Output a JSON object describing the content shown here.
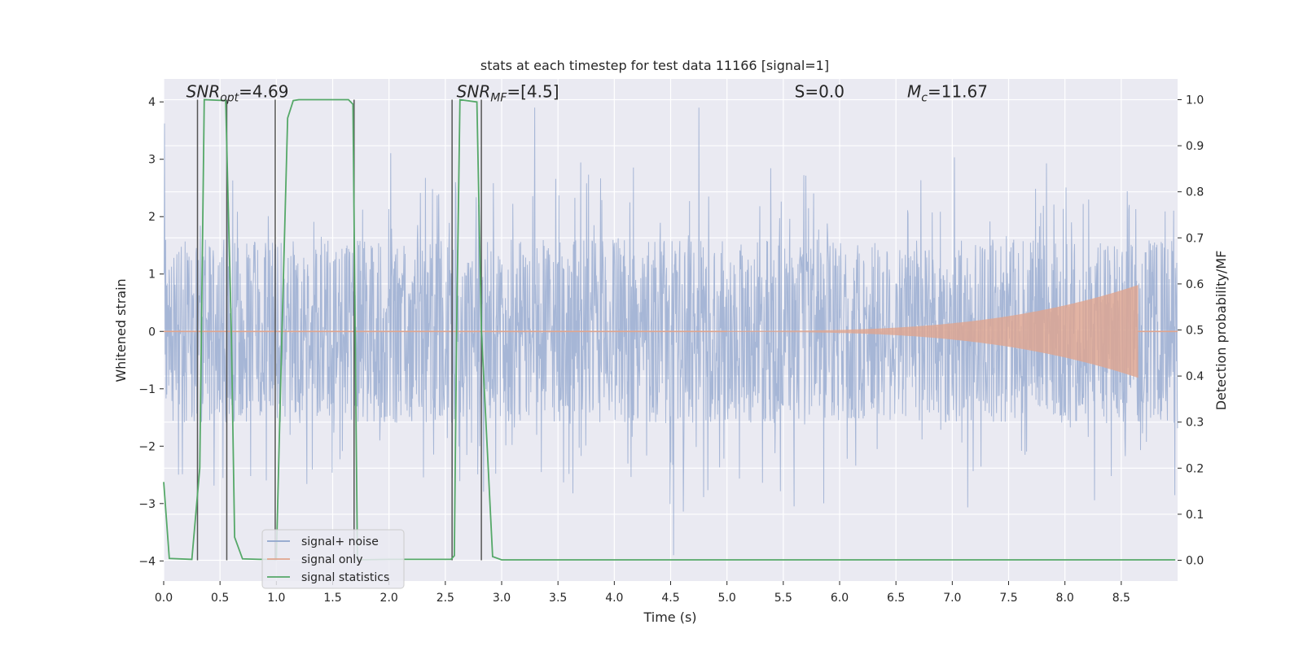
{
  "chart_data": {
    "type": "line",
    "title": "stats at each timestep for test data 11166 [signal=1]",
    "xlabel": "Time (s)",
    "ylabel_left": "Whitened strain",
    "ylabel_right": "Detection probability/MF",
    "xlim": [
      0.0,
      9.0
    ],
    "ylim_left": [
      -4.35,
      4.4
    ],
    "ylim_right": [
      -0.045,
      1.045
    ],
    "x_ticks": [
      0.0,
      0.5,
      1.0,
      1.5,
      2.0,
      2.5,
      3.0,
      3.5,
      4.0,
      4.5,
      5.0,
      5.5,
      6.0,
      6.5,
      7.0,
      7.5,
      8.0,
      8.5
    ],
    "x_tick_labels": [
      "0.0",
      "0.5",
      "1.0",
      "1.5",
      "2.0",
      "2.5",
      "3.0",
      "3.5",
      "4.0",
      "4.5",
      "5.0",
      "5.5",
      "6.0",
      "6.5",
      "7.0",
      "7.5",
      "8.0",
      "8.5"
    ],
    "y_left_ticks": [
      -4,
      -3,
      -2,
      -1,
      0,
      1,
      2,
      3,
      4
    ],
    "y_left_tick_labels": [
      "−4",
      "−3",
      "−2",
      "−1",
      "0",
      "1",
      "2",
      "3",
      "4"
    ],
    "y_right_ticks": [
      0.0,
      0.1,
      0.2,
      0.3,
      0.4,
      0.5,
      0.6,
      0.7,
      0.8,
      0.9,
      1.0
    ],
    "y_right_tick_labels": [
      "0.0",
      "0.1",
      "0.2",
      "0.3",
      "0.4",
      "0.5",
      "0.6",
      "0.7",
      "0.8",
      "0.9",
      "1.0"
    ],
    "grid": true,
    "legend_position": "lower-left",
    "colors": {
      "background": "#eaeaf2",
      "noise": "#8fa4cc",
      "signal": "#e0a58e",
      "stats": "#55a868",
      "marker": "#555555"
    },
    "annotations": [
      {
        "text": "SNR_opt=4.69",
        "x": 0.2,
        "y": 4.08
      },
      {
        "text": "SNR_MF=[4.5]",
        "x": 2.6,
        "y": 4.08
      },
      {
        "text": "S=0.0",
        "x": 5.6,
        "y": 4.08
      },
      {
        "text": "M_c=11.67",
        "x": 6.6,
        "y": 4.08
      }
    ],
    "series": [
      {
        "name": "signal+ noise",
        "description": "noisy whitened strain, roughly uniform amplitude about ±1.5 with spikes to ±3.5, time 0 to 9 s"
      },
      {
        "name": "signal only",
        "chirp": {
          "t_start": 5.0,
          "t_end": 8.65,
          "max_amplitude": 0.8
        }
      },
      {
        "name": "signal statistics",
        "x": [
          0.0,
          0.05,
          0.25,
          0.32,
          0.36,
          0.55,
          0.6,
          0.63,
          0.7,
          0.85,
          1.0,
          1.05,
          1.1,
          1.15,
          1.2,
          1.4,
          1.6,
          1.64,
          1.68,
          1.72,
          2.0,
          2.3,
          2.55,
          2.58,
          2.6,
          2.63,
          2.78,
          2.82,
          2.92,
          3.0,
          5.0,
          7.0,
          8.6,
          8.98
        ],
        "values": [
          0.17,
          0.004,
          0.002,
          0.2,
          1.0,
          0.998,
          0.5,
          0.05,
          0.003,
          0.002,
          0.002,
          0.5,
          0.96,
          0.998,
          1.0,
          1.0,
          1.0,
          1.0,
          0.99,
          0.001,
          0.002,
          0.002,
          0.002,
          0.01,
          0.5,
          1.0,
          0.995,
          0.5,
          0.008,
          0.001,
          0.001,
          0.001,
          0.001,
          0.001
        ]
      }
    ],
    "marker_lines_x": [
      0.3,
      0.56,
      0.99,
      1.69,
      2.56,
      2.82
    ]
  }
}
